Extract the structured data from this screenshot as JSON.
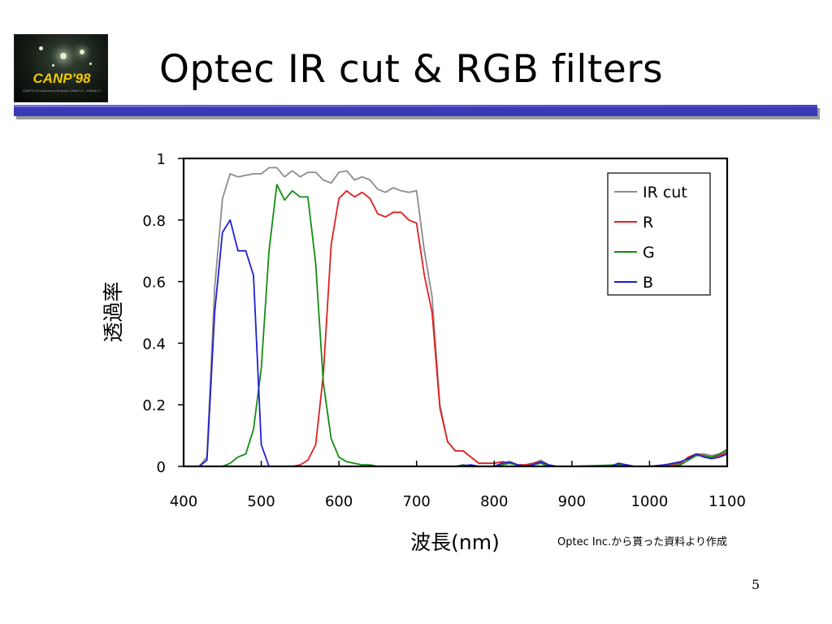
{
  "slide": {
    "title": "Optec IR cut & RGB filters",
    "note": "Optec Inc.から貰った資料より作成",
    "page_number": "5"
  },
  "logo": {
    "text": "CANP'98",
    "subtext": "CANP/CCD Astronomy Network 1998/8.12 - 1998/8.17"
  },
  "chart_data": {
    "type": "line",
    "xlabel": "波長(nm)",
    "ylabel": "透過率",
    "xlim": [
      400,
      1100
    ],
    "ylim": [
      0,
      1
    ],
    "x_ticks": [
      400,
      500,
      600,
      700,
      800,
      900,
      1000,
      1100
    ],
    "y_ticks": [
      0,
      0.2,
      0.4,
      0.6,
      0.8,
      1
    ],
    "y_tick_labels": [
      "0",
      "0.2",
      "0.4",
      "0.6",
      "0.8",
      "1"
    ],
    "grid": false,
    "legend_position": "top-right",
    "series": [
      {
        "name": "IR cut",
        "color": "#8c8c8c",
        "points": [
          [
            400,
            0
          ],
          [
            420,
            0
          ],
          [
            430,
            0.03
          ],
          [
            440,
            0.58
          ],
          [
            450,
            0.87
          ],
          [
            460,
            0.95
          ],
          [
            470,
            0.94
          ],
          [
            480,
            0.945
          ],
          [
            490,
            0.95
          ],
          [
            500,
            0.95
          ],
          [
            510,
            0.97
          ],
          [
            520,
            0.97
          ],
          [
            530,
            0.94
          ],
          [
            540,
            0.96
          ],
          [
            550,
            0.94
          ],
          [
            560,
            0.955
          ],
          [
            570,
            0.955
          ],
          [
            580,
            0.93
          ],
          [
            590,
            0.92
          ],
          [
            600,
            0.955
          ],
          [
            610,
            0.96
          ],
          [
            620,
            0.93
          ],
          [
            630,
            0.94
          ],
          [
            640,
            0.93
          ],
          [
            650,
            0.9
          ],
          [
            660,
            0.89
          ],
          [
            670,
            0.905
          ],
          [
            680,
            0.895
          ],
          [
            690,
            0.89
          ],
          [
            700,
            0.895
          ],
          [
            710,
            0.7
          ],
          [
            720,
            0.55
          ],
          [
            730,
            0.2
          ],
          [
            740,
            0.08
          ],
          [
            750,
            0.05
          ],
          [
            760,
            0.05
          ],
          [
            770,
            0.03
          ],
          [
            780,
            0.01
          ],
          [
            790,
            0.01
          ],
          [
            800,
            0.01
          ],
          [
            810,
            0.015
          ],
          [
            820,
            0.01
          ],
          [
            830,
            0.005
          ],
          [
            840,
            0.005
          ],
          [
            850,
            0.01
          ],
          [
            860,
            0.02
          ],
          [
            870,
            0.005
          ],
          [
            880,
            0
          ],
          [
            890,
            0
          ],
          [
            900,
            0
          ],
          [
            950,
            0
          ],
          [
            960,
            0.01
          ],
          [
            970,
            0.005
          ],
          [
            980,
            0
          ],
          [
            1000,
            0
          ],
          [
            1020,
            0.005
          ],
          [
            1040,
            0.01
          ],
          [
            1050,
            0.03
          ],
          [
            1060,
            0.04
          ],
          [
            1070,
            0.04
          ],
          [
            1080,
            0.035
          ],
          [
            1090,
            0.04
          ],
          [
            1100,
            0.05
          ]
        ]
      },
      {
        "name": "R",
        "color": "#e02020",
        "points": [
          [
            400,
            0
          ],
          [
            540,
            0
          ],
          [
            550,
            0.005
          ],
          [
            560,
            0.02
          ],
          [
            570,
            0.07
          ],
          [
            580,
            0.3
          ],
          [
            590,
            0.72
          ],
          [
            600,
            0.87
          ],
          [
            610,
            0.895
          ],
          [
            620,
            0.875
          ],
          [
            630,
            0.89
          ],
          [
            640,
            0.87
          ],
          [
            650,
            0.82
          ],
          [
            660,
            0.81
          ],
          [
            670,
            0.825
          ],
          [
            680,
            0.825
          ],
          [
            690,
            0.8
          ],
          [
            700,
            0.79
          ],
          [
            710,
            0.62
          ],
          [
            720,
            0.5
          ],
          [
            730,
            0.19
          ],
          [
            740,
            0.08
          ],
          [
            750,
            0.05
          ],
          [
            760,
            0.05
          ],
          [
            770,
            0.03
          ],
          [
            780,
            0.01
          ],
          [
            790,
            0.01
          ],
          [
            800,
            0.01
          ],
          [
            810,
            0.015
          ],
          [
            820,
            0.01
          ],
          [
            830,
            0.005
          ],
          [
            840,
            0.005
          ],
          [
            850,
            0.01
          ],
          [
            860,
            0.015
          ],
          [
            870,
            0.005
          ],
          [
            880,
            0
          ],
          [
            900,
            0
          ],
          [
            950,
            0
          ],
          [
            960,
            0.008
          ],
          [
            970,
            0.005
          ],
          [
            980,
            0
          ],
          [
            1000,
            0
          ],
          [
            1020,
            0.005
          ],
          [
            1040,
            0.01
          ],
          [
            1050,
            0.03
          ],
          [
            1060,
            0.04
          ],
          [
            1070,
            0.035
          ],
          [
            1080,
            0.03
          ],
          [
            1090,
            0.035
          ],
          [
            1100,
            0.045
          ]
        ]
      },
      {
        "name": "G",
        "color": "#148c14",
        "points": [
          [
            400,
            0
          ],
          [
            450,
            0
          ],
          [
            460,
            0.01
          ],
          [
            470,
            0.03
          ],
          [
            480,
            0.04
          ],
          [
            490,
            0.12
          ],
          [
            500,
            0.32
          ],
          [
            510,
            0.7
          ],
          [
            520,
            0.915
          ],
          [
            530,
            0.865
          ],
          [
            540,
            0.895
          ],
          [
            550,
            0.875
          ],
          [
            560,
            0.875
          ],
          [
            570,
            0.66
          ],
          [
            580,
            0.27
          ],
          [
            590,
            0.09
          ],
          [
            600,
            0.03
          ],
          [
            610,
            0.015
          ],
          [
            620,
            0.01
          ],
          [
            630,
            0.005
          ],
          [
            640,
            0.005
          ],
          [
            650,
            0
          ],
          [
            700,
            0
          ],
          [
            750,
            0
          ],
          [
            760,
            0.005
          ],
          [
            770,
            0
          ],
          [
            800,
            0
          ],
          [
            810,
            0.005
          ],
          [
            820,
            0.01
          ],
          [
            830,
            0.005
          ],
          [
            840,
            0
          ],
          [
            860,
            0.01
          ],
          [
            870,
            0
          ],
          [
            900,
            0
          ],
          [
            960,
            0.005
          ],
          [
            970,
            0
          ],
          [
            1000,
            0
          ],
          [
            1020,
            0
          ],
          [
            1040,
            0.005
          ],
          [
            1050,
            0.02
          ],
          [
            1060,
            0.035
          ],
          [
            1070,
            0.035
          ],
          [
            1080,
            0.03
          ],
          [
            1090,
            0.04
          ],
          [
            1100,
            0.055
          ]
        ]
      },
      {
        "name": "B",
        "color": "#1e1ed2",
        "points": [
          [
            400,
            0
          ],
          [
            420,
            0
          ],
          [
            430,
            0.02
          ],
          [
            440,
            0.5
          ],
          [
            450,
            0.76
          ],
          [
            460,
            0.8
          ],
          [
            470,
            0.7
          ],
          [
            480,
            0.7
          ],
          [
            490,
            0.62
          ],
          [
            500,
            0.07
          ],
          [
            510,
            0
          ],
          [
            520,
            0
          ],
          [
            600,
            0
          ],
          [
            700,
            0
          ],
          [
            750,
            0
          ],
          [
            770,
            0.005
          ],
          [
            780,
            0
          ],
          [
            800,
            0
          ],
          [
            810,
            0.01
          ],
          [
            820,
            0.015
          ],
          [
            830,
            0.005
          ],
          [
            840,
            0
          ],
          [
            850,
            0.005
          ],
          [
            860,
            0.015
          ],
          [
            870,
            0.005
          ],
          [
            880,
            0
          ],
          [
            900,
            0
          ],
          [
            950,
            0
          ],
          [
            960,
            0.01
          ],
          [
            970,
            0.005
          ],
          [
            980,
            0
          ],
          [
            1000,
            0
          ],
          [
            1020,
            0.005
          ],
          [
            1040,
            0.015
          ],
          [
            1050,
            0.025
          ],
          [
            1060,
            0.04
          ],
          [
            1070,
            0.03
          ],
          [
            1080,
            0.025
          ],
          [
            1090,
            0.03
          ],
          [
            1100,
            0.04
          ]
        ]
      }
    ]
  }
}
